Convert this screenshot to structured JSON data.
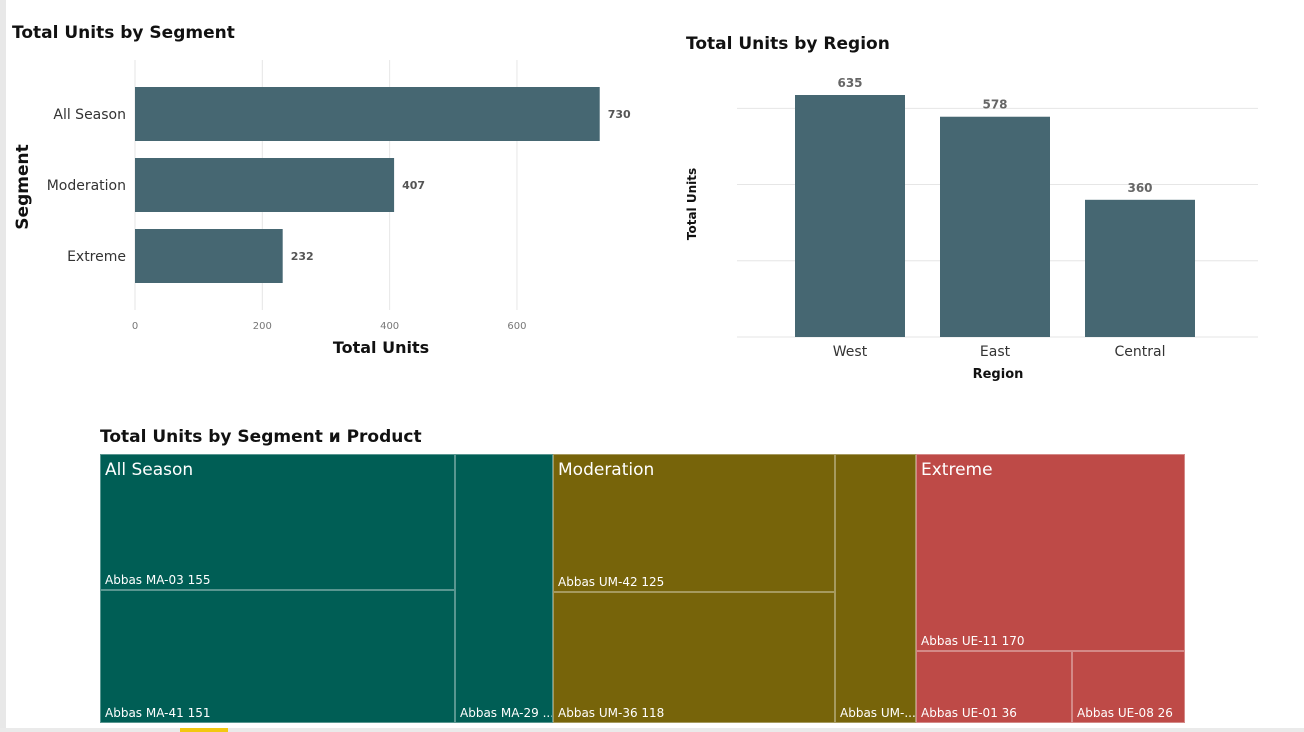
{
  "colors": {
    "bar": "#466772",
    "all_season": "#005E55",
    "moderation": "#77640A",
    "extreme": "#BE4A47",
    "grid": "#e6e6e6"
  },
  "chart_data": [
    {
      "type": "bar",
      "orientation": "horizontal",
      "title": "Total Units by Segment",
      "xlabel": "Total Units",
      "ylabel": "Segment",
      "categories": [
        "All Season",
        "Moderation",
        "Extreme"
      ],
      "values": [
        730,
        407,
        232
      ],
      "xlim": [
        0,
        800
      ],
      "xticks": [
        "0",
        "200",
        "400",
        "600"
      ],
      "grid": true
    },
    {
      "type": "bar",
      "orientation": "vertical",
      "title": "Total Units by Region",
      "xlabel": "Region",
      "ylabel": "Total Units",
      "categories": [
        "West",
        "East",
        "Central"
      ],
      "values": [
        635,
        578,
        360
      ],
      "ylim": [
        0,
        700
      ],
      "grid": true
    },
    {
      "type": "treemap",
      "title": "Total Units by Segment и Product",
      "groups": [
        {
          "name": "All Season",
          "items": [
            {
              "label": "Abbas MA-03 155"
            },
            {
              "label": "Abbas MA-41 151"
            },
            {
              "label": "Abbas MA-29 ..."
            }
          ]
        },
        {
          "name": "Moderation",
          "items": [
            {
              "label": "Abbas UM-42 125"
            },
            {
              "label": "Abbas UM-36 118"
            },
            {
              "label": "Abbas UM-..."
            }
          ]
        },
        {
          "name": "Extreme",
          "items": [
            {
              "label": "Abbas UE-11 170"
            },
            {
              "label": "Abbas UE-01 36"
            },
            {
              "label": "Abbas UE-08 26"
            }
          ]
        }
      ]
    }
  ]
}
